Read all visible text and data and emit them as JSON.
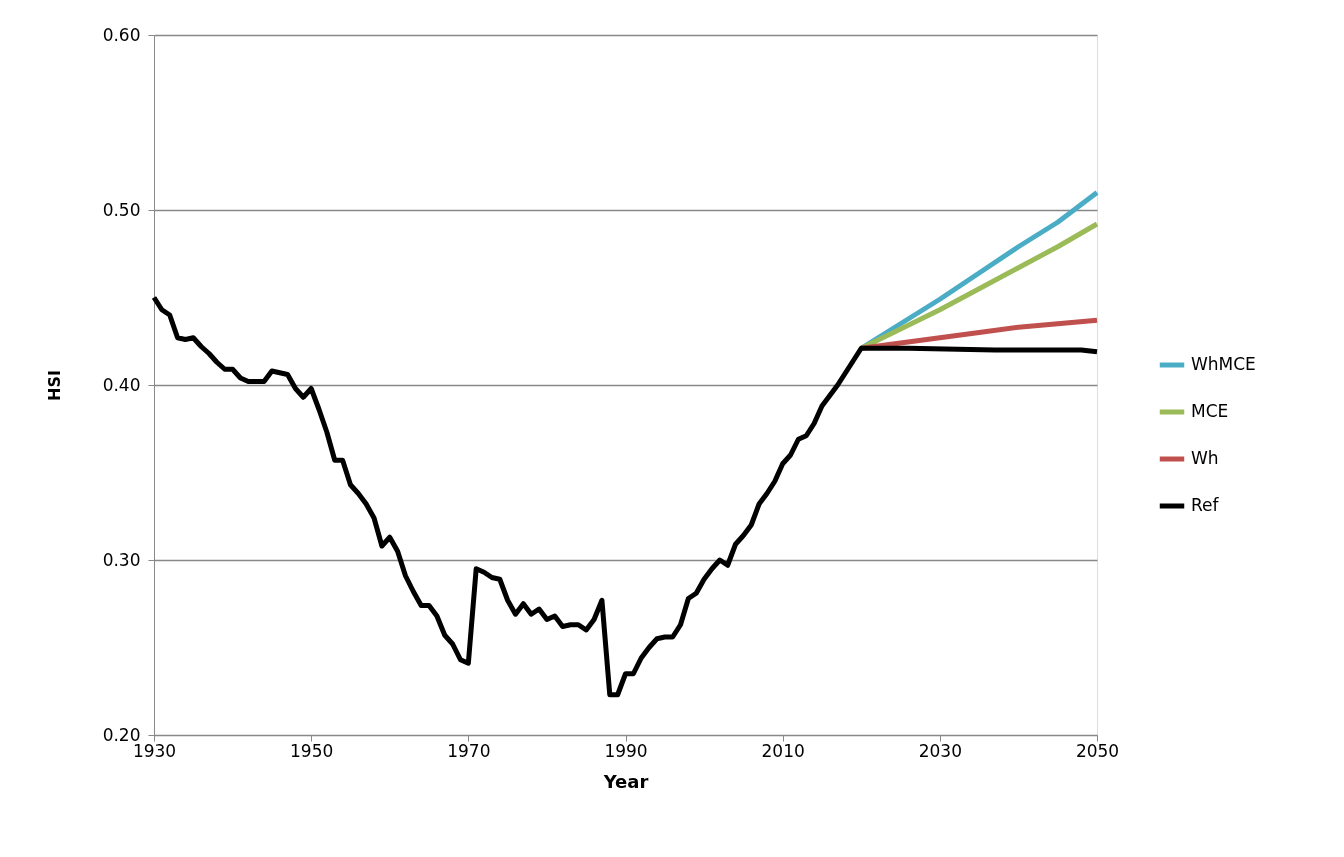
{
  "chart_data": {
    "type": "line",
    "xlabel": "Year",
    "ylabel": "HSI",
    "xlim": [
      1930,
      2050
    ],
    "xticks": [
      1930,
      1950,
      1970,
      1990,
      2010,
      2030,
      2050
    ],
    "ylim": [
      0.2,
      0.6
    ],
    "yticks": [
      {
        "value": 0.2,
        "label": "0.20"
      },
      {
        "value": 0.3,
        "label": "0.30"
      },
      {
        "value": 0.4,
        "label": "0.40"
      },
      {
        "value": 0.5,
        "label": "0.50"
      },
      {
        "value": 0.6,
        "label": "0.60"
      }
    ],
    "grid": "y",
    "legend": "right",
    "marker": "none",
    "line_style": "solid",
    "series": [
      {
        "name": "WhMCE",
        "color": "#4bacc6",
        "x": [
          2020,
          2025,
          2030,
          2035,
          2040,
          2045,
          2050
        ],
        "values": [
          0.421,
          0.435,
          0.449,
          0.464,
          0.479,
          0.493,
          0.51
        ]
      },
      {
        "name": "MCE",
        "color": "#9bbb59",
        "x": [
          2020,
          2025,
          2030,
          2035,
          2040,
          2045,
          2050
        ],
        "values": [
          0.421,
          0.432,
          0.443,
          0.455,
          0.467,
          0.479,
          0.492
        ]
      },
      {
        "name": "Wh",
        "color": "#c0504d",
        "x": [
          2020,
          2025,
          2030,
          2035,
          2040,
          2045,
          2050
        ],
        "values": [
          0.421,
          0.424,
          0.427,
          0.43,
          0.433,
          0.435,
          0.437
        ]
      },
      {
        "name": "Ref",
        "color": "#000000",
        "x": [
          1930,
          1931,
          1932,
          1933,
          1934,
          1935,
          1936,
          1937,
          1938,
          1939,
          1940,
          1941,
          1942,
          1943,
          1944,
          1945,
          1946,
          1947,
          1948,
          1949,
          1950,
          1951,
          1952,
          1953,
          1954,
          1955,
          1956,
          1957,
          1958,
          1959,
          1960,
          1961,
          1962,
          1963,
          1964,
          1965,
          1966,
          1967,
          1968,
          1969,
          1970,
          1971,
          1972,
          1973,
          1974,
          1975,
          1976,
          1977,
          1978,
          1979,
          1980,
          1981,
          1982,
          1983,
          1984,
          1985,
          1986,
          1987,
          1988,
          1989,
          1990,
          1991,
          1992,
          1993,
          1994,
          1995,
          1996,
          1997,
          1998,
          1999,
          2000,
          2001,
          2002,
          2003,
          2004,
          2005,
          2006,
          2007,
          2008,
          2009,
          2010,
          2011,
          2012,
          2013,
          2014,
          2015,
          2016,
          2017,
          2018,
          2019,
          2020,
          2026,
          2037,
          2048,
          2050
        ],
        "values": [
          0.45,
          0.443,
          0.44,
          0.427,
          0.426,
          0.427,
          0.422,
          0.418,
          0.413,
          0.409,
          0.409,
          0.404,
          0.402,
          0.402,
          0.402,
          0.408,
          0.407,
          0.406,
          0.398,
          0.393,
          0.398,
          0.386,
          0.373,
          0.357,
          0.357,
          0.343,
          0.338,
          0.332,
          0.324,
          0.308,
          0.313,
          0.305,
          0.291,
          0.282,
          0.274,
          0.274,
          0.268,
          0.257,
          0.252,
          0.243,
          0.241,
          0.295,
          0.293,
          0.29,
          0.289,
          0.277,
          0.269,
          0.275,
          0.269,
          0.272,
          0.266,
          0.268,
          0.262,
          0.263,
          0.263,
          0.26,
          0.266,
          0.277,
          0.223,
          0.223,
          0.235,
          0.235,
          0.244,
          0.25,
          0.255,
          0.256,
          0.256,
          0.263,
          0.278,
          0.281,
          0.289,
          0.295,
          0.3,
          0.297,
          0.309,
          0.314,
          0.32,
          0.332,
          0.338,
          0.345,
          0.355,
          0.36,
          0.369,
          0.371,
          0.378,
          0.388,
          0.394,
          0.4,
          0.407,
          0.414,
          0.421,
          0.421,
          0.42,
          0.42,
          0.419
        ]
      }
    ]
  }
}
